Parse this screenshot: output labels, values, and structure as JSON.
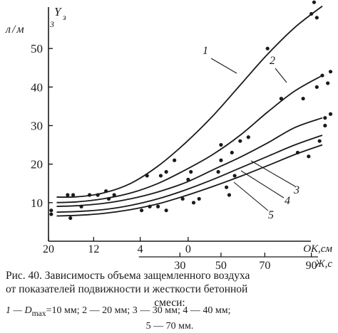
{
  "chart_data": {
    "type": "line",
    "ylabel": "Y",
    "ylabel_sub": "з",
    "yunit": "л/м",
    "yunit_sup": "3",
    "ylim": [
      0,
      60
    ],
    "yticks": [
      10,
      20,
      30,
      40,
      50
    ],
    "xlim": [
      0,
      100
    ],
    "xaxis_ok": {
      "label": "ОК,см",
      "ticks": [
        {
          "label": "20",
          "at": 0
        },
        {
          "label": "12",
          "at": 16.5
        },
        {
          "label": "4",
          "at": 33.5
        },
        {
          "label": "0",
          "at": 51
        }
      ]
    },
    "xaxis_zh": {
      "label": "Ж,с",
      "ticks": [
        {
          "label": "30",
          "at": 48
        },
        {
          "label": "50",
          "at": 63
        },
        {
          "label": "70",
          "at": 79
        },
        {
          "label": "90",
          "at": 96
        }
      ]
    },
    "series": [
      {
        "name": "1",
        "x": [
          0,
          10,
          20,
          30,
          40,
          50,
          60,
          70,
          80,
          90,
          100
        ],
        "y": [
          11.5,
          11.5,
          12.5,
          15,
          19.5,
          25.5,
          32.5,
          40.5,
          48.5,
          55.5,
          61
        ]
      },
      {
        "name": "2",
        "x": [
          0,
          10,
          20,
          30,
          40,
          50,
          60,
          70,
          80,
          90,
          100
        ],
        "y": [
          10,
          10.2,
          11,
          12.5,
          15,
          18.5,
          22.5,
          27.5,
          33.5,
          39,
          43
        ]
      },
      {
        "name": "3",
        "x": [
          0,
          10,
          20,
          30,
          40,
          50,
          60,
          70,
          80,
          90,
          100
        ],
        "y": [
          9,
          9.2,
          9.8,
          11,
          12.8,
          15.2,
          18.5,
          21.8,
          25.5,
          29.5,
          32
        ]
      },
      {
        "name": "4",
        "x": [
          0,
          10,
          20,
          30,
          40,
          50,
          60,
          70,
          80,
          90,
          100
        ],
        "y": [
          7.5,
          7.7,
          8.2,
          9.3,
          11,
          13.3,
          16,
          19,
          22,
          25,
          27.5
        ]
      },
      {
        "name": "5",
        "x": [
          0,
          10,
          20,
          30,
          40,
          50,
          60,
          70,
          80,
          90,
          100
        ],
        "y": [
          6.5,
          6.7,
          7.2,
          8.2,
          9.7,
          11.8,
          14.2,
          16.8,
          19.6,
          22.5,
          25
        ]
      }
    ],
    "points": [
      {
        "x": 1,
        "y": 7
      },
      {
        "x": 1,
        "y": 8
      },
      {
        "x": 7,
        "y": 12
      },
      {
        "x": 8,
        "y": 6
      },
      {
        "x": 9,
        "y": 12
      },
      {
        "x": 12,
        "y": 9
      },
      {
        "x": 15,
        "y": 12
      },
      {
        "x": 18,
        "y": 12
      },
      {
        "x": 21,
        "y": 13
      },
      {
        "x": 24,
        "y": 12
      },
      {
        "x": 22,
        "y": 11
      },
      {
        "x": 34,
        "y": 8
      },
      {
        "x": 36,
        "y": 17
      },
      {
        "x": 37,
        "y": 9
      },
      {
        "x": 40,
        "y": 9
      },
      {
        "x": 41,
        "y": 17
      },
      {
        "x": 43,
        "y": 8
      },
      {
        "x": 43,
        "y": 18
      },
      {
        "x": 46,
        "y": 21
      },
      {
        "x": 49,
        "y": 11
      },
      {
        "x": 51,
        "y": 16
      },
      {
        "x": 52,
        "y": 18
      },
      {
        "x": 53,
        "y": 10
      },
      {
        "x": 55,
        "y": 11
      },
      {
        "x": 62,
        "y": 18
      },
      {
        "x": 63,
        "y": 25
      },
      {
        "x": 63,
        "y": 21
      },
      {
        "x": 65,
        "y": 14
      },
      {
        "x": 66,
        "y": 12
      },
      {
        "x": 67,
        "y": 23
      },
      {
        "x": 68,
        "y": 17
      },
      {
        "x": 70,
        "y": 26
      },
      {
        "x": 73,
        "y": 27
      },
      {
        "x": 80,
        "y": 50
      },
      {
        "x": 85,
        "y": 37
      },
      {
        "x": 91,
        "y": 23
      },
      {
        "x": 93,
        "y": 37
      },
      {
        "x": 95,
        "y": 22
      },
      {
        "x": 96,
        "y": 59
      },
      {
        "x": 97,
        "y": 62
      },
      {
        "x": 98,
        "y": 40
      },
      {
        "x": 98,
        "y": 58
      },
      {
        "x": 99,
        "y": 26
      },
      {
        "x": 100,
        "y": 43
      },
      {
        "x": 101,
        "y": 32
      },
      {
        "x": 101,
        "y": 30
      },
      {
        "x": 102,
        "y": 41
      },
      {
        "x": 103,
        "y": 44
      },
      {
        "x": 103,
        "y": 33
      }
    ],
    "grid": false,
    "legend": "inline-labels"
  },
  "caption": {
    "line1": "Рис. 40. Зависимость объема защемленного воздуха",
    "line2": "от показателей подвижности и жесткости бетонной",
    "line3": "смеси:",
    "legend_row1": "1 — D",
    "legend_row1_sub": "max",
    "legend_row1_rest": "=10 мм; 2 — 20 мм; 3 — 30 мм; 4 — 40 мм;",
    "legend_row2": "5 — 70 мм."
  }
}
